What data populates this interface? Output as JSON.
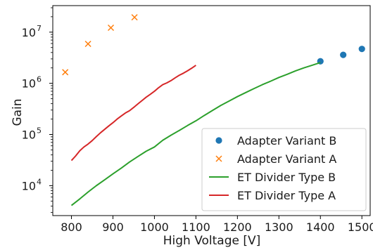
{
  "chart_data": {
    "type": "line",
    "title": "",
    "xlabel": "High Voltage [V]",
    "ylabel": "Gain",
    "xlim": [
      755,
      1520
    ],
    "ylim": [
      2600,
      33000000
    ],
    "yscale": "log",
    "grid": false,
    "legend_position": "lower-right",
    "x_ticks": [
      {
        "value": 800,
        "label": "800"
      },
      {
        "value": 900,
        "label": "900"
      },
      {
        "value": 1000,
        "label": "1000"
      },
      {
        "value": 1100,
        "label": "1100"
      },
      {
        "value": 1200,
        "label": "1200"
      },
      {
        "value": 1300,
        "label": "1300"
      },
      {
        "value": 1400,
        "label": "1400"
      },
      {
        "value": 1500,
        "label": "1500"
      }
    ],
    "y_ticks": [
      {
        "value": 10000,
        "base": "10",
        "exp": "4"
      },
      {
        "value": 100000,
        "base": "10",
        "exp": "5"
      },
      {
        "value": 1000000,
        "base": "10",
        "exp": "6"
      },
      {
        "value": 10000000,
        "base": "10",
        "exp": "7"
      }
    ],
    "series": [
      {
        "name": "Adapter Variant B",
        "style": "scatter-dot",
        "color": "#1f77b4",
        "x": [
          1400,
          1455,
          1500
        ],
        "y": [
          2700000,
          3600000,
          4700000
        ]
      },
      {
        "name": "Adapter Variant A",
        "style": "scatter-x",
        "color": "#ff7f0e",
        "x": [
          785,
          840,
          895,
          952
        ],
        "y": [
          1650000,
          5900000,
          12200000,
          19500000
        ]
      },
      {
        "name": "ET Divider Type B",
        "style": "line",
        "color": "#2ca02c",
        "x": [
          800,
          820,
          840,
          860,
          880,
          900,
          920,
          940,
          960,
          980,
          1000,
          1020,
          1040,
          1060,
          1080,
          1100,
          1120,
          1140,
          1160,
          1180,
          1200,
          1220,
          1240,
          1260,
          1280,
          1300,
          1320,
          1340,
          1360,
          1380,
          1400
        ],
        "y": [
          4100,
          5500,
          7500,
          10000,
          13000,
          17000,
          22000,
          29000,
          37000,
          47000,
          57000,
          77000,
          97000,
          120000,
          150000,
          185000,
          235000,
          295000,
          370000,
          450000,
          550000,
          660000,
          790000,
          940000,
          1100000,
          1300000,
          1500000,
          1750000,
          2000000,
          2250000,
          2550000
        ]
      },
      {
        "name": "ET Divider Type A",
        "style": "line",
        "color": "#d62728",
        "x": [
          800,
          810,
          820,
          830,
          840,
          850,
          860,
          870,
          880,
          890,
          900,
          910,
          920,
          930,
          940,
          950,
          960,
          970,
          980,
          990,
          1000,
          1010,
          1020,
          1030,
          1040,
          1050,
          1060,
          1070,
          1080,
          1090,
          1100
        ],
        "y": [
          31000,
          38000,
          48000,
          57000,
          65000,
          76000,
          91000,
          108000,
          126000,
          147000,
          170000,
          200000,
          230000,
          263000,
          292000,
          338000,
          395000,
          460000,
          535000,
          610000,
          700000,
          820000,
          940000,
          1020000,
          1130000,
          1280000,
          1440000,
          1580000,
          1760000,
          1980000,
          2250000
        ]
      }
    ]
  }
}
